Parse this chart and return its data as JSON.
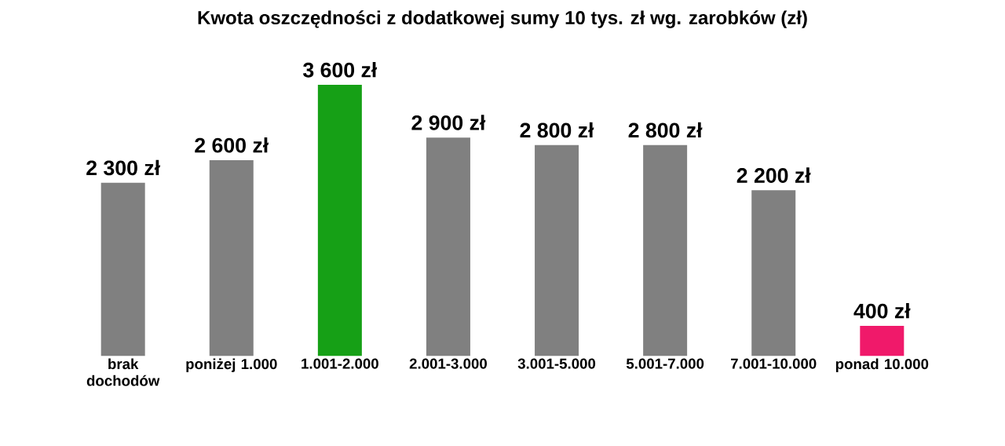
{
  "chart_data": {
    "type": "bar",
    "title": "Kwota oszczędności z dodatkowej sumy 10 tys. zł wg. zarobków (zł)",
    "categories": [
      "brak dochodów",
      "poniżej 1.000",
      "1.001-2.000",
      "2.001-3.000",
      "3.001-5.000",
      "5.001-7.000",
      "7.001-10.000",
      "ponad 10.000"
    ],
    "values": [
      2300,
      2600,
      3600,
      2900,
      2800,
      2800,
      2200,
      400
    ],
    "value_labels": [
      "2 300 zł",
      "2 600 zł",
      "3 600 zł",
      "2 900 zł",
      "2 800 zł",
      "2 800 zł",
      "2 200 zł",
      "400 zł"
    ],
    "colors": [
      "#808080",
      "#808080",
      "#16a016",
      "#808080",
      "#808080",
      "#808080",
      "#808080",
      "#f0196a"
    ]
  }
}
